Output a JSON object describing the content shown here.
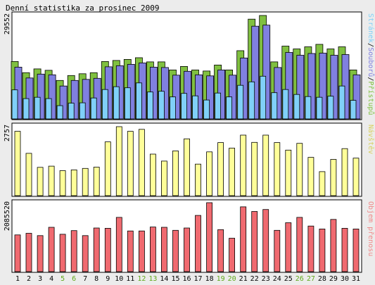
{
  "title": "Denní statistika za prosinec 2009",
  "colors": {
    "background": "#ececec",
    "panel": "#ffffff",
    "border": "#000000",
    "hits": "#80c040",
    "files": "#8080e0",
    "pages": "#80d0f8",
    "visits": "#ffff99",
    "kbytes": "#f06a70",
    "weekend_label": "#5fa818",
    "label": "#000000"
  },
  "chart_data": [
    {
      "type": "bar",
      "name": "daily-hits-files-pages",
      "categories": [
        "1",
        "2",
        "3",
        "4",
        "5",
        "6",
        "7",
        "8",
        "9",
        "10",
        "11",
        "12",
        "13",
        "14",
        "15",
        "16",
        "17",
        "18",
        "19",
        "20",
        "21",
        "22",
        "23",
        "24",
        "25",
        "26",
        "27",
        "28",
        "29",
        "30",
        "31"
      ],
      "weekend_categories": [
        "5",
        "6",
        "12",
        "13",
        "19",
        "20",
        "26",
        "27"
      ],
      "ymax_label": "29552",
      "ylim": [
        0,
        29552
      ],
      "series_label_parts": [
        "Stránek",
        "/",
        "Souborů",
        "/",
        "Přístupů"
      ],
      "series": [
        {
          "name": "Přístupů",
          "values": [
            16400,
            13200,
            14300,
            13900,
            11000,
            12400,
            12900,
            13200,
            16400,
            16700,
            17000,
            17500,
            16300,
            16300,
            14000,
            15000,
            14000,
            13700,
            15400,
            14000,
            19500,
            28500,
            29552,
            16300,
            20800,
            20000,
            20600,
            21300,
            20000,
            20600,
            14000
          ]
        },
        {
          "name": "Souborů",
          "values": [
            14800,
            11700,
            12800,
            12600,
            9400,
            11000,
            11300,
            11600,
            14900,
            15200,
            15600,
            16000,
            14800,
            14700,
            12500,
            13600,
            12600,
            12300,
            14000,
            12500,
            17400,
            26500,
            26800,
            14700,
            19000,
            18200,
            18700,
            18800,
            18200,
            18400,
            12600
          ]
        },
        {
          "name": "Stránek",
          "values": [
            8300,
            5800,
            6200,
            5800,
            3800,
            4500,
            4600,
            6000,
            8400,
            9200,
            8900,
            10300,
            7700,
            7900,
            6300,
            7300,
            6600,
            5400,
            7400,
            6300,
            9600,
            10600,
            12200,
            7500,
            8400,
            7000,
            6400,
            6200,
            6500,
            9400,
            5300
          ]
        }
      ]
    },
    {
      "type": "bar",
      "name": "daily-visits",
      "categories": [
        "1",
        "2",
        "3",
        "4",
        "5",
        "6",
        "7",
        "8",
        "9",
        "10",
        "11",
        "12",
        "13",
        "14",
        "15",
        "16",
        "17",
        "18",
        "19",
        "20",
        "21",
        "22",
        "23",
        "24",
        "25",
        "26",
        "27",
        "28",
        "29",
        "30",
        "31"
      ],
      "ymax_label": "2757",
      "ylim": [
        0,
        2757
      ],
      "series_label": "Návštěv",
      "series": [
        {
          "name": "Návštěv",
          "values": [
            2570,
            1690,
            1130,
            1180,
            1000,
            1030,
            1090,
            1140,
            2150,
            2757,
            2570,
            2650,
            1660,
            1380,
            1790,
            2270,
            1260,
            1750,
            2120,
            1900,
            2420,
            2130,
            2420,
            2120,
            1820,
            2090,
            1530,
            960,
            1450,
            1880,
            1500
          ]
        }
      ]
    },
    {
      "type": "bar",
      "name": "daily-kbytes",
      "categories": [
        "1",
        "2",
        "3",
        "4",
        "5",
        "6",
        "7",
        "8",
        "9",
        "10",
        "11",
        "12",
        "13",
        "14",
        "15",
        "16",
        "17",
        "18",
        "19",
        "20",
        "21",
        "22",
        "23",
        "24",
        "25",
        "26",
        "27",
        "28",
        "29",
        "30",
        "31"
      ],
      "ymax_label": "2085520",
      "ylim": [
        0,
        2085520
      ],
      "series_label": "Objem přenosu",
      "series": [
        {
          "name": "Objem přenosu",
          "values": [
            1110000,
            1160000,
            1090000,
            1340000,
            1130000,
            1240000,
            1090000,
            1320000,
            1310000,
            1640000,
            1230000,
            1230000,
            1350000,
            1340000,
            1250000,
            1320000,
            1700000,
            2085520,
            1270000,
            1010000,
            1960000,
            1820000,
            1880000,
            1250000,
            1480000,
            1640000,
            1380000,
            1290000,
            1580000,
            1310000,
            1290000
          ]
        }
      ]
    }
  ]
}
